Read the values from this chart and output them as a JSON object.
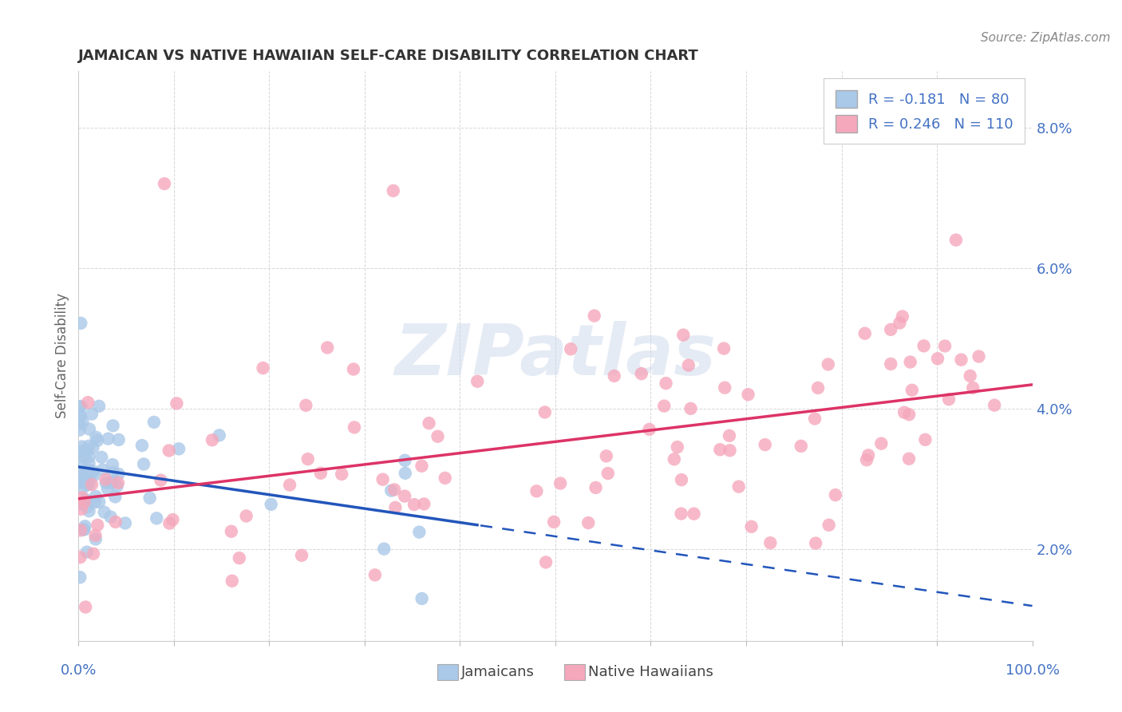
{
  "title": "JAMAICAN VS NATIVE HAWAIIAN SELF-CARE DISABILITY CORRELATION CHART",
  "source": "Source: ZipAtlas.com",
  "ylabel": "Self-Care Disability",
  "legend_jamaicans": "Jamaicans",
  "legend_native_hawaiians": "Native Hawaiians",
  "r_jamaicans": -0.181,
  "r_native_hawaiians": 0.246,
  "n_jamaicans": 80,
  "n_native_hawaiians": 110,
  "jamaican_color": "#aac8e8",
  "native_hawaiian_color": "#f5a8bc",
  "jamaican_line_color": "#2255bb",
  "native_hawaiian_line_color": "#dd3366",
  "legend_text_color": "#4472c4",
  "axis_tick_color": "#4472c4",
  "title_color": "#333333",
  "source_color": "#888888",
  "ylabel_color": "#666666",
  "background_color": "#ffffff",
  "watermark": "ZIPatlas",
  "xlim": [
    0.0,
    1.0
  ],
  "ylim": [
    0.007,
    0.088
  ],
  "yticks": [
    0.02,
    0.04,
    0.06,
    0.08
  ],
  "title_fontsize": 13,
  "tick_fontsize": 13,
  "legend_fontsize": 13,
  "ylabel_fontsize": 12
}
